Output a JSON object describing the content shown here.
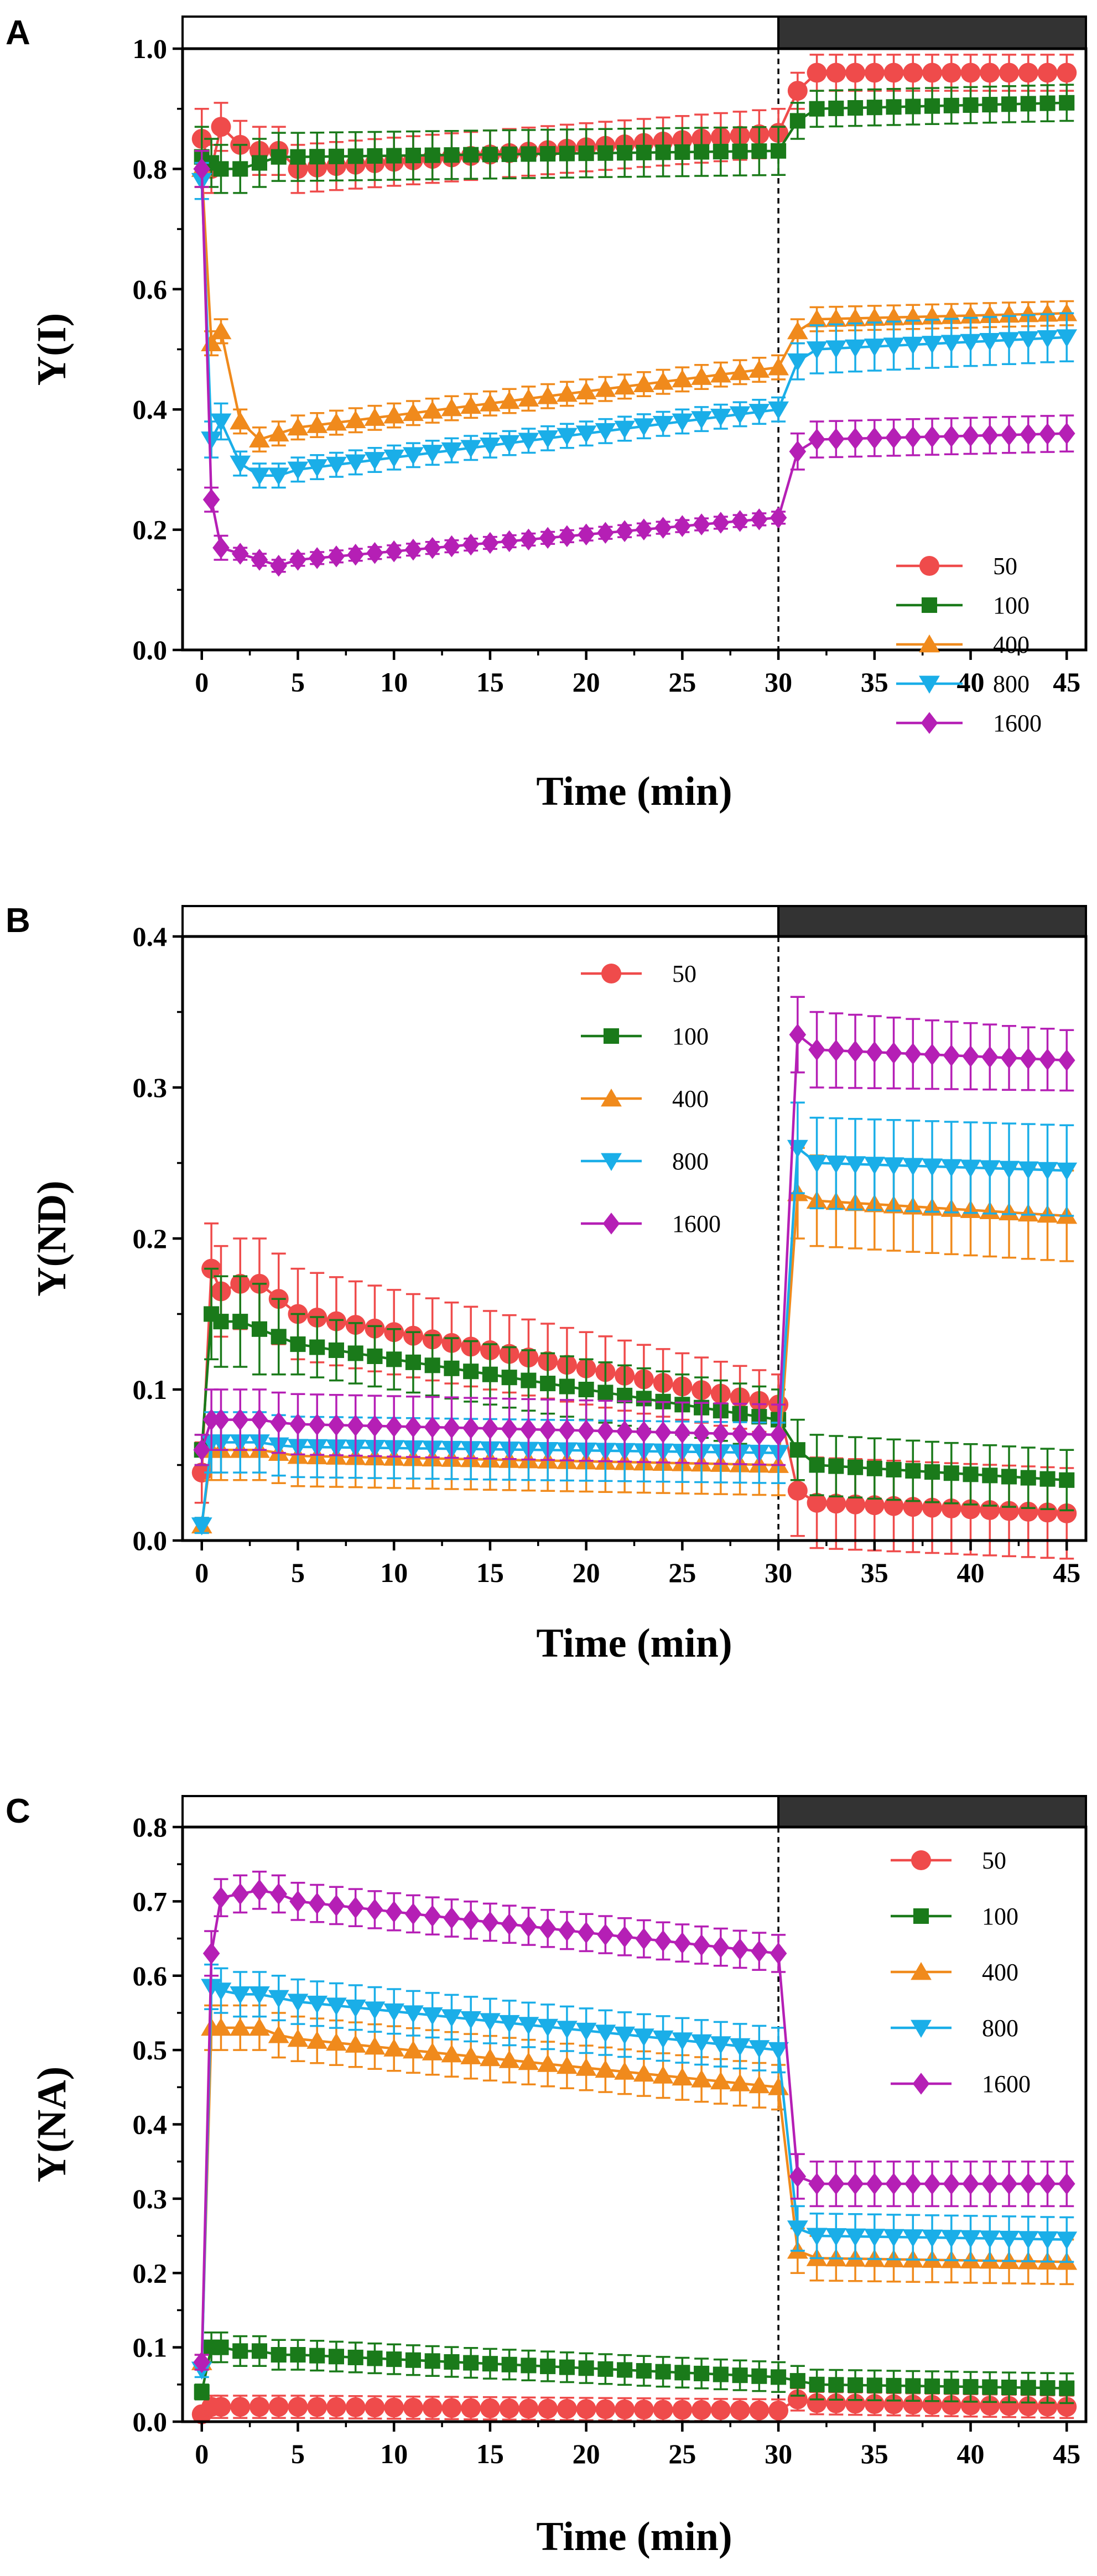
{
  "chart_data": [
    {
      "type": "line",
      "panel": "A",
      "xlabel": "Time (min)",
      "ylabel": "Y(I)",
      "xlim": [
        -1,
        46
      ],
      "ylim": [
        0,
        1.0
      ],
      "xticks": [
        0,
        5,
        10,
        15,
        20,
        25,
        30,
        35,
        40,
        45
      ],
      "yticks": [
        0.0,
        0.2,
        0.4,
        0.6,
        0.8,
        1.0
      ],
      "ytick_labels": [
        "0.0",
        "0.2",
        "0.4",
        "0.6",
        "0.8",
        "1.0"
      ],
      "light_bar": {
        "light_until": 30,
        "dark_from": 30
      },
      "vline": 30,
      "legend_position": "bottom-right",
      "series": [
        {
          "name": "50",
          "color": "#ef4b4b",
          "marker": "circle",
          "x": [
            0,
            0.5,
            1,
            2,
            3,
            4,
            5,
            30,
            31,
            32,
            45
          ],
          "y": [
            0.85,
            0.8,
            0.87,
            0.84,
            0.83,
            0.83,
            0.8,
            0.86,
            0.93,
            0.96,
            0.96
          ],
          "err": [
            0.05,
            0.04,
            0.04,
            0.04,
            0.04,
            0.04,
            0.04,
            0.04,
            0.03,
            0.03,
            0.03
          ]
        },
        {
          "name": "100",
          "color": "#1a7a1a",
          "marker": "square",
          "x": [
            0,
            0.5,
            1,
            2,
            3,
            4,
            5,
            30,
            31,
            32,
            45
          ],
          "y": [
            0.82,
            0.81,
            0.8,
            0.8,
            0.81,
            0.82,
            0.82,
            0.83,
            0.88,
            0.9,
            0.91
          ],
          "err": [
            0.05,
            0.04,
            0.04,
            0.04,
            0.04,
            0.04,
            0.04,
            0.04,
            0.03,
            0.03,
            0.03
          ]
        },
        {
          "name": "400",
          "color": "#f08a1c",
          "marker": "triangle-up",
          "x": [
            0,
            0.5,
            1,
            2,
            3,
            4,
            5,
            30,
            31,
            32,
            45
          ],
          "y": [
            0.8,
            0.51,
            0.53,
            0.38,
            0.35,
            0.36,
            0.37,
            0.47,
            0.53,
            0.55,
            0.56
          ],
          "err": [
            0.03,
            0.02,
            0.02,
            0.02,
            0.02,
            0.02,
            0.02,
            0.02,
            0.02,
            0.02,
            0.02
          ]
        },
        {
          "name": "800",
          "color": "#1aaee8",
          "marker": "triangle-down",
          "x": [
            0,
            0.5,
            1,
            2,
            3,
            4,
            5,
            30,
            31,
            32,
            45
          ],
          "y": [
            0.78,
            0.35,
            0.38,
            0.31,
            0.29,
            0.29,
            0.3,
            0.4,
            0.48,
            0.5,
            0.52
          ],
          "err": [
            0.03,
            0.03,
            0.03,
            0.02,
            0.02,
            0.02,
            0.02,
            0.02,
            0.03,
            0.04,
            0.04
          ]
        },
        {
          "name": "1600",
          "color": "#b51fb5",
          "marker": "diamond",
          "x": [
            0,
            0.5,
            1,
            2,
            3,
            4,
            5,
            30,
            31,
            32,
            45
          ],
          "y": [
            0.8,
            0.25,
            0.17,
            0.16,
            0.15,
            0.14,
            0.15,
            0.22,
            0.33,
            0.35,
            0.36
          ],
          "err": [
            0.03,
            0.02,
            0.02,
            0.01,
            0.01,
            0.01,
            0.01,
            0.01,
            0.03,
            0.03,
            0.03
          ]
        }
      ]
    },
    {
      "type": "line",
      "panel": "B",
      "xlabel": "Time (min)",
      "ylabel": "Y(ND)",
      "xlim": [
        -1,
        46
      ],
      "ylim": [
        0,
        0.4
      ],
      "xticks": [
        0,
        5,
        10,
        15,
        20,
        25,
        30,
        35,
        40,
        45
      ],
      "yticks": [
        0.0,
        0.1,
        0.2,
        0.3,
        0.4
      ],
      "ytick_labels": [
        "0.0",
        "0.1",
        "0.2",
        "0.3",
        "0.4"
      ],
      "light_bar": {
        "light_until": 30,
        "dark_from": 30
      },
      "vline": 30,
      "legend_position": "top-middle",
      "series": [
        {
          "name": "50",
          "color": "#ef4b4b",
          "marker": "circle",
          "x": [
            0,
            0.5,
            1,
            2,
            3,
            4,
            5,
            30,
            31,
            32,
            45
          ],
          "y": [
            0.045,
            0.18,
            0.165,
            0.17,
            0.17,
            0.16,
            0.15,
            0.09,
            0.033,
            0.025,
            0.018
          ],
          "err": [
            0.02,
            0.03,
            0.03,
            0.03,
            0.03,
            0.03,
            0.03,
            0.02,
            0.03,
            0.03,
            0.03
          ]
        },
        {
          "name": "100",
          "color": "#1a7a1a",
          "marker": "square",
          "x": [
            0,
            0.5,
            1,
            2,
            3,
            4,
            5,
            30,
            31,
            32,
            45
          ],
          "y": [
            0.06,
            0.15,
            0.145,
            0.145,
            0.14,
            0.135,
            0.13,
            0.08,
            0.06,
            0.05,
            0.04
          ],
          "err": [
            0.01,
            0.03,
            0.03,
            0.03,
            0.03,
            0.025,
            0.02,
            0.02,
            0.02,
            0.02,
            0.02
          ]
        },
        {
          "name": "400",
          "color": "#f08a1c",
          "marker": "triangle-up",
          "x": [
            0,
            0.5,
            1,
            2,
            3,
            4,
            5,
            30,
            31,
            32,
            45
          ],
          "y": [
            0.01,
            0.06,
            0.06,
            0.06,
            0.06,
            0.058,
            0.056,
            0.05,
            0.23,
            0.225,
            0.215
          ],
          "err": [
            0.005,
            0.02,
            0.02,
            0.02,
            0.02,
            0.02,
            0.02,
            0.02,
            0.03,
            0.03,
            0.03
          ]
        },
        {
          "name": "800",
          "color": "#1aaee8",
          "marker": "triangle-down",
          "x": [
            0,
            0.5,
            1,
            2,
            3,
            4,
            5,
            30,
            31,
            32,
            45
          ],
          "y": [
            0.01,
            0.065,
            0.065,
            0.065,
            0.065,
            0.063,
            0.062,
            0.058,
            0.26,
            0.25,
            0.245
          ],
          "err": [
            0.005,
            0.02,
            0.02,
            0.02,
            0.02,
            0.02,
            0.02,
            0.02,
            0.03,
            0.03,
            0.03
          ]
        },
        {
          "name": "1600",
          "color": "#b51fb5",
          "marker": "diamond",
          "x": [
            0,
            0.5,
            1,
            2,
            3,
            4,
            5,
            30,
            31,
            32,
            45
          ],
          "y": [
            0.06,
            0.08,
            0.08,
            0.08,
            0.08,
            0.078,
            0.077,
            0.07,
            0.335,
            0.325,
            0.318
          ],
          "err": [
            0.01,
            0.02,
            0.02,
            0.02,
            0.02,
            0.02,
            0.02,
            0.02,
            0.025,
            0.025,
            0.02
          ]
        }
      ]
    },
    {
      "type": "line",
      "panel": "C",
      "xlabel": "Time (min)",
      "ylabel": "Y(NA)",
      "xlim": [
        -1,
        46
      ],
      "ylim": [
        0,
        0.8
      ],
      "xticks": [
        0,
        5,
        10,
        15,
        20,
        25,
        30,
        35,
        40,
        45
      ],
      "yticks": [
        0.0,
        0.1,
        0.2,
        0.3,
        0.4,
        0.5,
        0.6,
        0.7,
        0.8
      ],
      "ytick_labels": [
        "0.0",
        "0.1",
        "0.2",
        "0.3",
        "0.4",
        "0.5",
        "0.6",
        "0.7",
        "0.8"
      ],
      "light_bar": {
        "light_until": 30,
        "dark_from": 30
      },
      "vline": 30,
      "legend_position": "top-right",
      "series": [
        {
          "name": "50",
          "color": "#ef4b4b",
          "marker": "circle",
          "x": [
            0,
            0.5,
            1,
            2,
            3,
            4,
            5,
            30,
            31,
            32,
            45
          ],
          "y": [
            0.01,
            0.02,
            0.02,
            0.02,
            0.02,
            0.02,
            0.02,
            0.015,
            0.03,
            0.025,
            0.02
          ],
          "err": [
            0.005,
            0.015,
            0.015,
            0.015,
            0.015,
            0.015,
            0.015,
            0.015,
            0.015,
            0.015,
            0.015
          ]
        },
        {
          "name": "100",
          "color": "#1a7a1a",
          "marker": "square",
          "x": [
            0,
            0.5,
            1,
            2,
            3,
            4,
            5,
            30,
            31,
            32,
            45
          ],
          "y": [
            0.04,
            0.1,
            0.1,
            0.095,
            0.095,
            0.09,
            0.09,
            0.06,
            0.055,
            0.05,
            0.045
          ],
          "err": [
            0.01,
            0.02,
            0.02,
            0.02,
            0.02,
            0.02,
            0.02,
            0.02,
            0.02,
            0.02,
            0.02
          ]
        },
        {
          "name": "400",
          "color": "#f08a1c",
          "marker": "triangle-up",
          "x": [
            0,
            0.5,
            1,
            2,
            3,
            4,
            5,
            30,
            31,
            32,
            45
          ],
          "y": [
            0.08,
            0.53,
            0.53,
            0.53,
            0.53,
            0.52,
            0.515,
            0.45,
            0.23,
            0.22,
            0.215
          ],
          "err": [
            0.01,
            0.03,
            0.03,
            0.03,
            0.03,
            0.03,
            0.03,
            0.03,
            0.03,
            0.03,
            0.03
          ]
        },
        {
          "name": "800",
          "color": "#1aaee8",
          "marker": "triangle-down",
          "x": [
            0,
            0.5,
            1,
            2,
            3,
            4,
            5,
            30,
            31,
            32,
            45
          ],
          "y": [
            0.07,
            0.585,
            0.58,
            0.575,
            0.575,
            0.57,
            0.565,
            0.5,
            0.26,
            0.25,
            0.245
          ],
          "err": [
            0.01,
            0.03,
            0.03,
            0.03,
            0.03,
            0.03,
            0.03,
            0.03,
            0.03,
            0.03,
            0.03
          ]
        },
        {
          "name": "1600",
          "color": "#b51fb5",
          "marker": "diamond",
          "x": [
            0,
            0.5,
            1,
            2,
            3,
            4,
            5,
            30,
            31,
            32,
            45
          ],
          "y": [
            0.08,
            0.63,
            0.705,
            0.71,
            0.715,
            0.71,
            0.7,
            0.63,
            0.33,
            0.32,
            0.32
          ],
          "err": [
            0.01,
            0.03,
            0.025,
            0.025,
            0.025,
            0.025,
            0.025,
            0.025,
            0.03,
            0.03,
            0.03
          ]
        }
      ]
    }
  ]
}
